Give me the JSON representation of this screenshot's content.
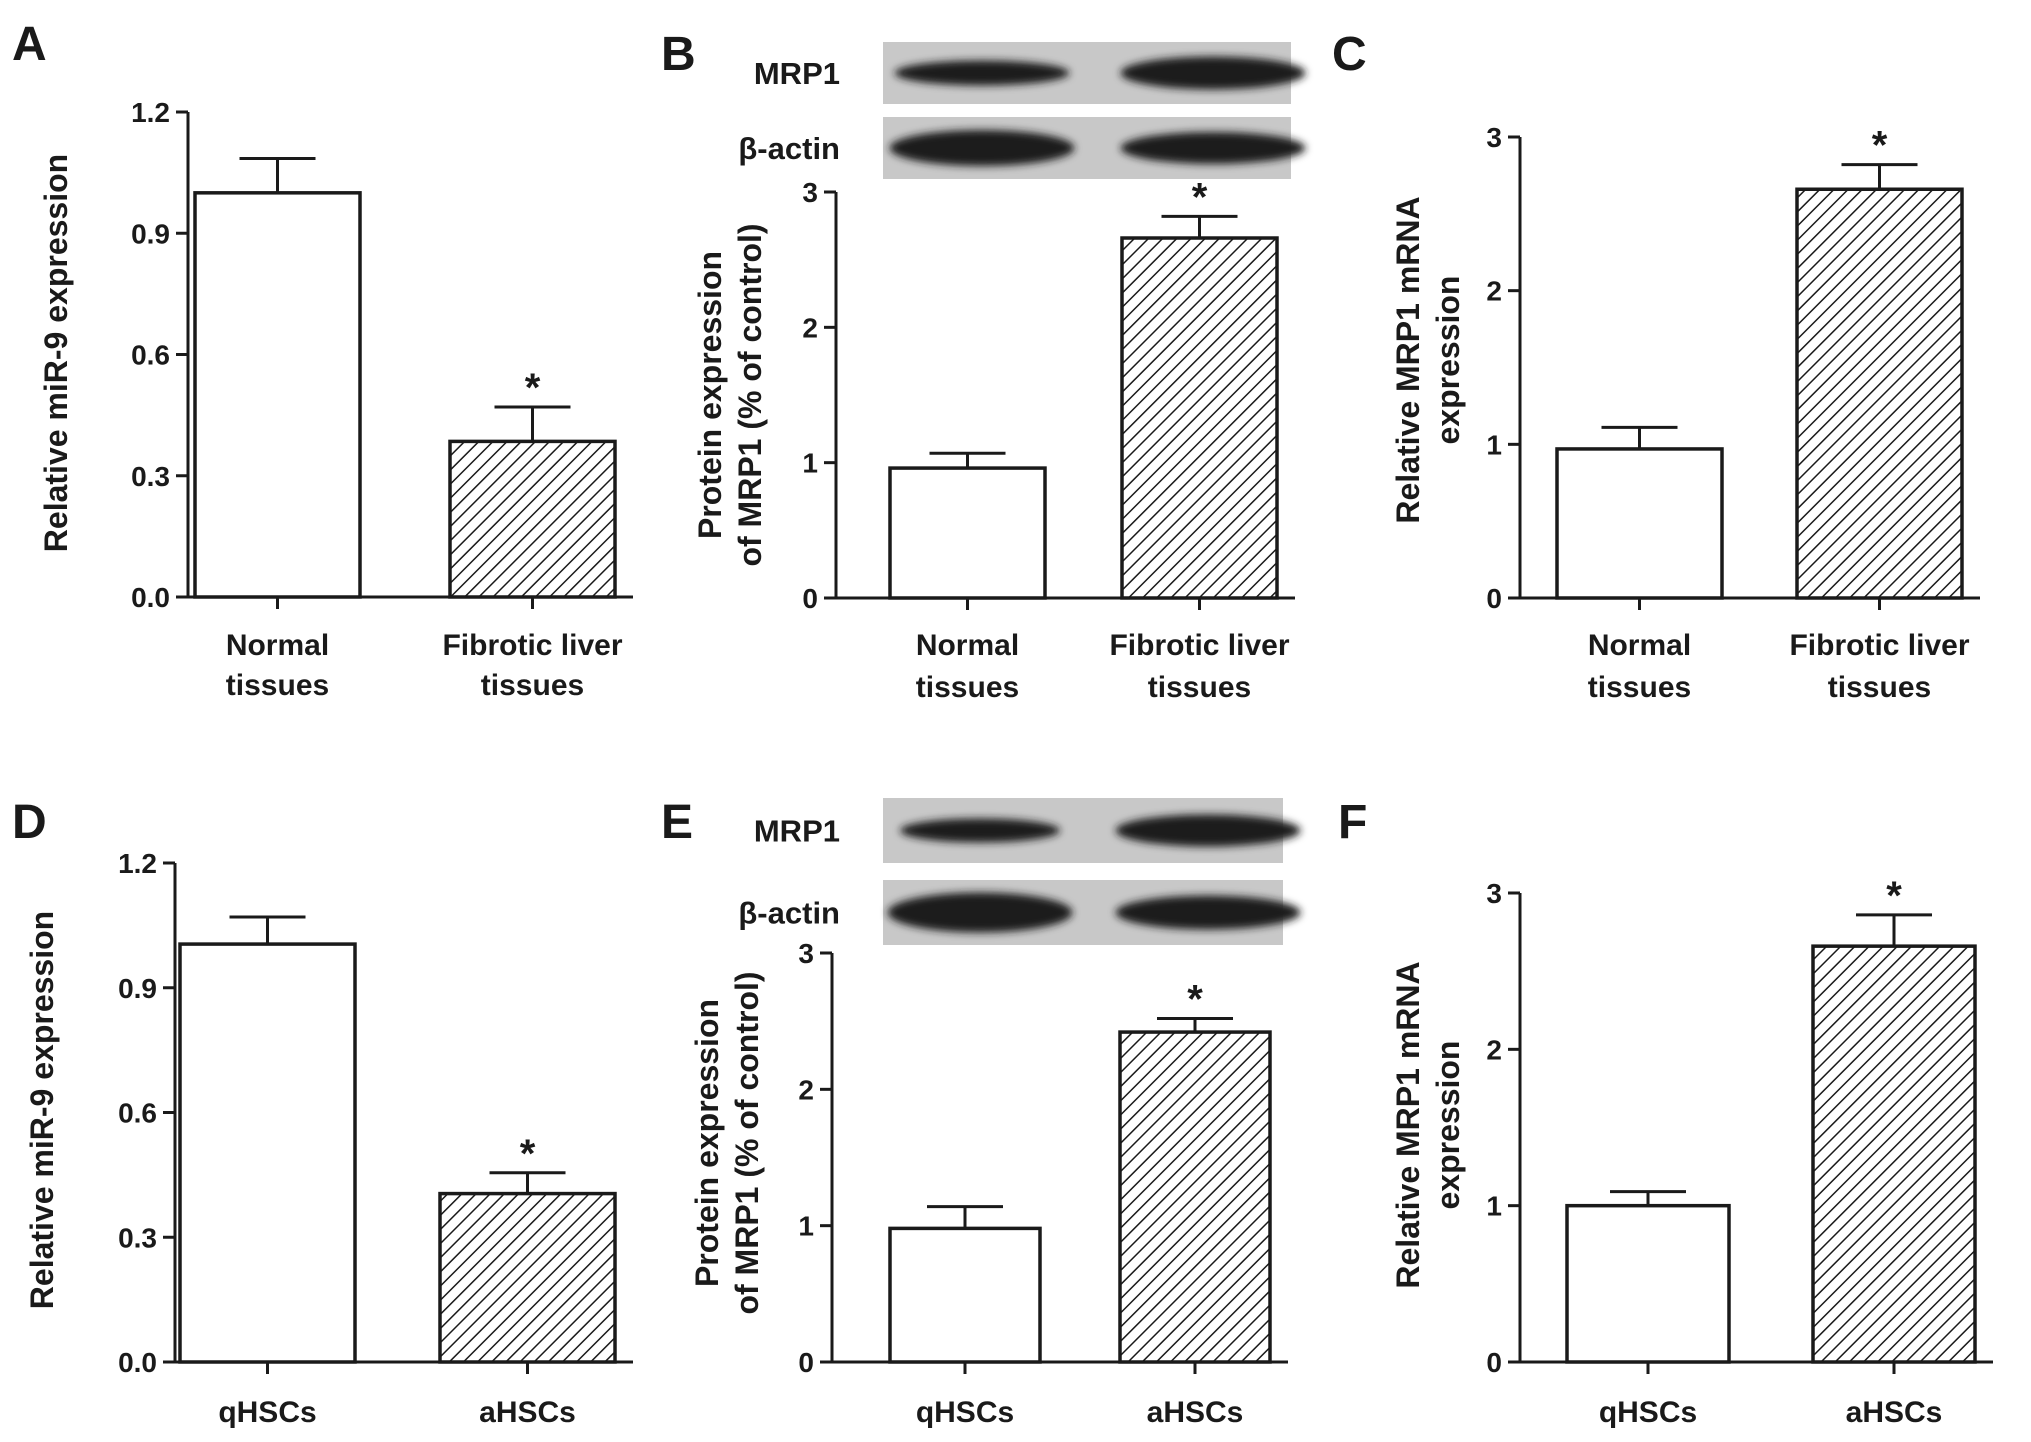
{
  "colors": {
    "ink": "#1a1a1a",
    "white_bar": "#ffffff",
    "hatch": "#1a1a1a",
    "blot_bg": "#c8c8c8",
    "band": "#1c1c1c"
  },
  "chart_data": [
    {
      "panel": "A",
      "type": "bar",
      "ylabel": "Relative miR-9 expression",
      "categories": [
        [
          "Normal",
          "tissues"
        ],
        [
          "Fibrotic liver",
          "tissues"
        ]
      ],
      "values": [
        1.0,
        0.385
      ],
      "errors": [
        0.085,
        0.085
      ],
      "fills": [
        "white",
        "hatch"
      ],
      "significance": [
        "",
        "*"
      ],
      "ylim": [
        0,
        1.2
      ],
      "yticks": [
        0.0,
        0.3,
        0.6,
        0.9,
        1.2
      ],
      "ytick_labels": [
        "0.0",
        "0.3",
        "0.6",
        "0.9",
        "1.2"
      ]
    },
    {
      "panel": "B",
      "type": "bar",
      "ylabel": [
        "Protein expression",
        "of MRP1 (% of control)"
      ],
      "categories": [
        [
          "Normal",
          "tissues"
        ],
        [
          "Fibrotic liver",
          "tissues"
        ]
      ],
      "values": [
        0.96,
        2.66
      ],
      "errors": [
        0.11,
        0.16
      ],
      "fills": [
        "white",
        "hatch"
      ],
      "significance": [
        "",
        "*"
      ],
      "ylim": [
        0,
        3
      ],
      "yticks": [
        0,
        1,
        2,
        3
      ],
      "ytick_labels": [
        "0",
        "1",
        "2",
        "3"
      ],
      "blot": {
        "rows": [
          "MRP1",
          "β-actin"
        ]
      }
    },
    {
      "panel": "C",
      "type": "bar",
      "ylabel": [
        "Relative MRP1 mRNA",
        "expression"
      ],
      "categories": [
        [
          "Normal",
          "tissues"
        ],
        [
          "Fibrotic liver",
          "tissues"
        ]
      ],
      "values": [
        0.97,
        2.66
      ],
      "errors": [
        0.14,
        0.16
      ],
      "fills": [
        "white",
        "hatch"
      ],
      "significance": [
        "",
        "*"
      ],
      "ylim": [
        0,
        3
      ],
      "yticks": [
        0,
        1,
        2,
        3
      ],
      "ytick_labels": [
        "0",
        "1",
        "2",
        "3"
      ]
    },
    {
      "panel": "D",
      "type": "bar",
      "ylabel": "Relative miR-9 expression",
      "categories": [
        [
          "qHSCs"
        ],
        [
          "aHSCs"
        ]
      ],
      "values": [
        1.005,
        0.405
      ],
      "errors": [
        0.065,
        0.05
      ],
      "fills": [
        "white",
        "hatch"
      ],
      "significance": [
        "",
        "*"
      ],
      "ylim": [
        0,
        1.2
      ],
      "yticks": [
        0.0,
        0.3,
        0.6,
        0.9,
        1.2
      ],
      "ytick_labels": [
        "0.0",
        "0.3",
        "0.6",
        "0.9",
        "1.2"
      ]
    },
    {
      "panel": "E",
      "type": "bar",
      "ylabel": [
        "Protein expression",
        "of MRP1 (% of control)"
      ],
      "categories": [
        [
          "qHSCs"
        ],
        [
          "aHSCs"
        ]
      ],
      "values": [
        0.98,
        2.42
      ],
      "errors": [
        0.16,
        0.1
      ],
      "fills": [
        "white",
        "hatch"
      ],
      "significance": [
        "",
        "*"
      ],
      "ylim": [
        0,
        3
      ],
      "yticks": [
        0,
        1,
        2,
        3
      ],
      "ytick_labels": [
        "0",
        "1",
        "2",
        "3"
      ],
      "blot": {
        "rows": [
          "MRP1",
          "β-actin"
        ]
      }
    },
    {
      "panel": "F",
      "type": "bar",
      "ylabel": [
        "Relative MRP1 mRNA",
        "expression"
      ],
      "categories": [
        [
          "qHSCs"
        ],
        [
          "aHSCs"
        ]
      ],
      "values": [
        1.0,
        2.66
      ],
      "errors": [
        0.09,
        0.2
      ],
      "fills": [
        "white",
        "hatch"
      ],
      "significance": [
        "",
        "*"
      ],
      "ylim": [
        0,
        3
      ],
      "yticks": [
        0,
        1,
        2,
        3
      ],
      "ytick_labels": [
        "0",
        "1",
        "2",
        "3"
      ]
    }
  ]
}
